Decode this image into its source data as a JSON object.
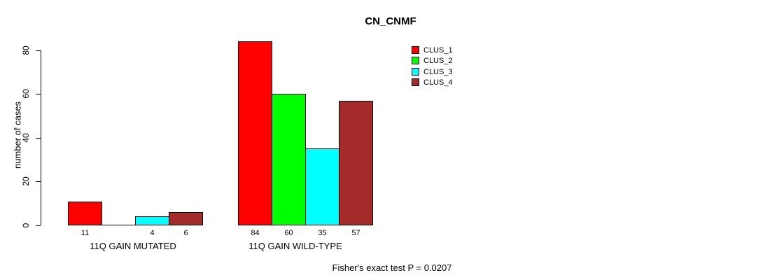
{
  "chart_data": {
    "type": "bar",
    "title": "CN_CNMF",
    "ylabel": "number of cases",
    "xlabel": "",
    "ylim": [
      0,
      80
    ],
    "yticks": [
      0,
      20,
      40,
      60,
      80
    ],
    "grid": false,
    "legend_position": "top-right",
    "categories": [
      "11Q GAIN MUTATED",
      "11Q GAIN WILD-TYPE"
    ],
    "series": [
      {
        "name": "CLUS_1",
        "color": "#ff0000",
        "values": [
          11,
          84
        ]
      },
      {
        "name": "CLUS_2",
        "color": "#00ff00",
        "values": [
          0,
          60
        ]
      },
      {
        "name": "CLUS_3",
        "color": "#00ffff",
        "values": [
          4,
          35
        ]
      },
      {
        "name": "CLUS_4",
        "color": "#a52a2a",
        "values": [
          6,
          57
        ]
      }
    ],
    "bar_value_labels": [
      [
        "11",
        "",
        "4",
        "6"
      ],
      [
        "84",
        "60",
        "35",
        "57"
      ]
    ],
    "annotation": "Fisher's exact test P = 0.0207",
    "axis_color": "#000000",
    "background_color": "#ffffff"
  }
}
